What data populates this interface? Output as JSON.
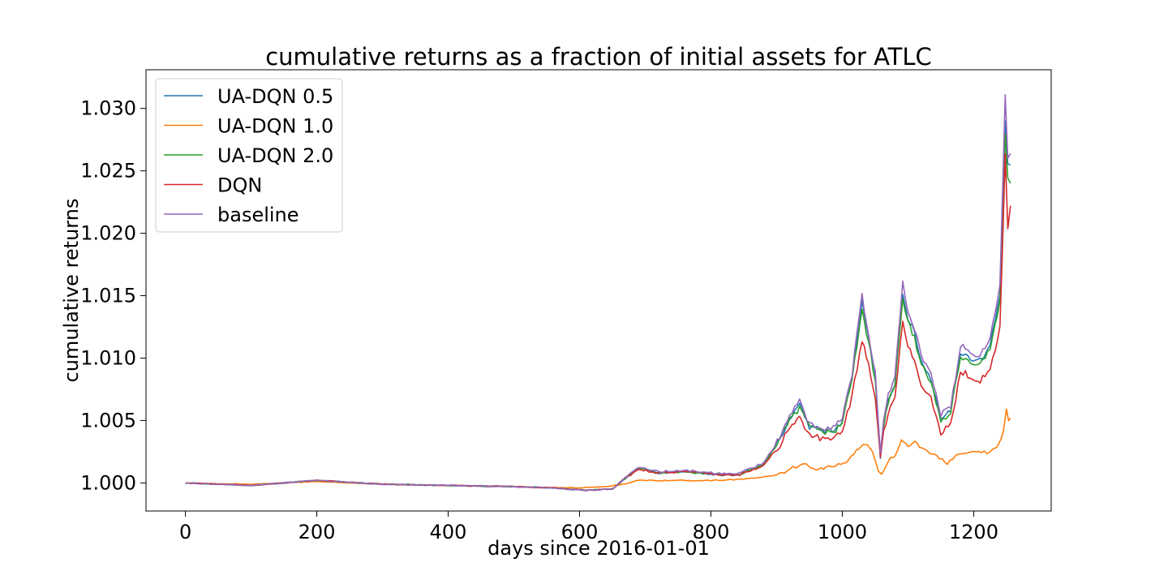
{
  "chart_data": {
    "type": "line",
    "title": "cumulative returns as a fraction of initial assets for ATLC",
    "xlabel": "days since 2016-01-01",
    "ylabel": "cumulative returns",
    "xlim": [
      -60,
      1318
    ],
    "ylim": [
      0.99775,
      1.0331
    ],
    "xticks": [
      0,
      200,
      400,
      600,
      800,
      1000,
      1200
    ],
    "xtick_labels": [
      "0",
      "200",
      "400",
      "600",
      "800",
      "1000",
      "1200"
    ],
    "yticks": [
      1.0,
      1.005,
      1.01,
      1.015,
      1.02,
      1.025,
      1.03
    ],
    "ytick_labels": [
      "1.000",
      "1.005",
      "1.010",
      "1.015",
      "1.020",
      "1.025",
      "1.030"
    ],
    "grid": false,
    "legend_position": "upper-left",
    "series": [
      {
        "name": "UA-DQN 0.5",
        "color": "#1f77b4",
        "points": [
          [
            0,
            1.0
          ],
          [
            100,
            0.9998
          ],
          [
            200,
            1.0002
          ],
          [
            300,
            0.9999
          ],
          [
            400,
            0.9998
          ],
          [
            500,
            0.9997
          ],
          [
            560,
            0.9996
          ],
          [
            610,
            0.9994
          ],
          [
            650,
            0.9995
          ],
          [
            665,
            1.0002
          ],
          [
            690,
            1.0012
          ],
          [
            720,
            1.0008
          ],
          [
            760,
            1.0009
          ],
          [
            800,
            1.0007
          ],
          [
            840,
            1.0006
          ],
          [
            880,
            1.0015
          ],
          [
            905,
            1.0035
          ],
          [
            920,
            1.0052
          ],
          [
            935,
            1.0062
          ],
          [
            950,
            1.0045
          ],
          [
            970,
            1.0042
          ],
          [
            990,
            1.0043
          ],
          [
            1000,
            1.005
          ],
          [
            1015,
            1.0085
          ],
          [
            1030,
            1.0145
          ],
          [
            1040,
            1.0115
          ],
          [
            1050,
            1.0085
          ],
          [
            1058,
            1.0022
          ],
          [
            1063,
            1.0048
          ],
          [
            1070,
            1.0068
          ],
          [
            1080,
            1.008
          ],
          [
            1092,
            1.0152
          ],
          [
            1100,
            1.0132
          ],
          [
            1110,
            1.012
          ],
          [
            1120,
            1.0098
          ],
          [
            1135,
            1.0083
          ],
          [
            1150,
            1.0052
          ],
          [
            1165,
            1.0058
          ],
          [
            1180,
            1.0105
          ],
          [
            1195,
            1.01
          ],
          [
            1210,
            1.0098
          ],
          [
            1225,
            1.011
          ],
          [
            1240,
            1.015
          ],
          [
            1248,
            1.029
          ],
          [
            1252,
            1.0255
          ],
          [
            1256,
            1.0255
          ]
        ]
      },
      {
        "name": "UA-DQN 1.0",
        "color": "#ff7f0e",
        "points": [
          [
            0,
            1.0
          ],
          [
            100,
            0.9999
          ],
          [
            200,
            1.0001
          ],
          [
            300,
            0.9999
          ],
          [
            400,
            0.9998
          ],
          [
            500,
            0.9997
          ],
          [
            600,
            0.9996
          ],
          [
            640,
            0.9997
          ],
          [
            665,
            0.9999
          ],
          [
            690,
            1.0002
          ],
          [
            750,
            1.0002
          ],
          [
            800,
            1.0002
          ],
          [
            850,
            1.0003
          ],
          [
            900,
            1.0006
          ],
          [
            925,
            1.0012
          ],
          [
            945,
            1.0015
          ],
          [
            960,
            1.0011
          ],
          [
            990,
            1.0014
          ],
          [
            1010,
            1.0018
          ],
          [
            1025,
            1.0028
          ],
          [
            1035,
            1.0032
          ],
          [
            1045,
            1.0025
          ],
          [
            1055,
            1.001
          ],
          [
            1060,
            1.0006
          ],
          [
            1070,
            1.0018
          ],
          [
            1080,
            1.0022
          ],
          [
            1090,
            1.0035
          ],
          [
            1100,
            1.003
          ],
          [
            1110,
            1.0033
          ],
          [
            1125,
            1.0026
          ],
          [
            1140,
            1.0022
          ],
          [
            1160,
            1.0016
          ],
          [
            1180,
            1.0024
          ],
          [
            1200,
            1.0026
          ],
          [
            1220,
            1.0024
          ],
          [
            1235,
            1.0028
          ],
          [
            1245,
            1.004
          ],
          [
            1250,
            1.0058
          ],
          [
            1253,
            1.005
          ],
          [
            1256,
            1.0052
          ]
        ]
      },
      {
        "name": "UA-DQN 2.0",
        "color": "#2ca02c",
        "points": [
          [
            0,
            1.0
          ],
          [
            100,
            0.9998
          ],
          [
            200,
            1.0002
          ],
          [
            300,
            0.9999
          ],
          [
            400,
            0.9998
          ],
          [
            500,
            0.9997
          ],
          [
            560,
            0.9996
          ],
          [
            610,
            0.9994
          ],
          [
            650,
            0.9995
          ],
          [
            665,
            1.0002
          ],
          [
            690,
            1.0012
          ],
          [
            720,
            1.0008
          ],
          [
            760,
            1.0009
          ],
          [
            800,
            1.0007
          ],
          [
            840,
            1.0006
          ],
          [
            880,
            1.0015
          ],
          [
            905,
            1.0034
          ],
          [
            920,
            1.005
          ],
          [
            935,
            1.006
          ],
          [
            950,
            1.0044
          ],
          [
            970,
            1.0041
          ],
          [
            990,
            1.0042
          ],
          [
            1000,
            1.0049
          ],
          [
            1015,
            1.0083
          ],
          [
            1030,
            1.014
          ],
          [
            1040,
            1.0112
          ],
          [
            1050,
            1.0083
          ],
          [
            1058,
            1.0022
          ],
          [
            1063,
            1.0046
          ],
          [
            1070,
            1.0066
          ],
          [
            1080,
            1.0078
          ],
          [
            1092,
            1.0148
          ],
          [
            1100,
            1.0128
          ],
          [
            1110,
            1.0116
          ],
          [
            1120,
            1.0095
          ],
          [
            1135,
            1.008
          ],
          [
            1150,
            1.005
          ],
          [
            1165,
            1.0056
          ],
          [
            1180,
            1.0102
          ],
          [
            1195,
            1.0097
          ],
          [
            1210,
            1.0095
          ],
          [
            1225,
            1.0106
          ],
          [
            1240,
            1.0145
          ],
          [
            1248,
            1.028
          ],
          [
            1252,
            1.0245
          ],
          [
            1256,
            1.024
          ]
        ]
      },
      {
        "name": "DQN",
        "color": "#d62728",
        "points": [
          [
            0,
            1.0
          ],
          [
            100,
            0.9998
          ],
          [
            200,
            1.0002
          ],
          [
            300,
            0.9999
          ],
          [
            400,
            0.9998
          ],
          [
            500,
            0.9997
          ],
          [
            560,
            0.9996
          ],
          [
            610,
            0.9994
          ],
          [
            650,
            0.9995
          ],
          [
            665,
            1.0002
          ],
          [
            690,
            1.0011
          ],
          [
            720,
            1.0008
          ],
          [
            760,
            1.0009
          ],
          [
            800,
            1.0007
          ],
          [
            840,
            1.0006
          ],
          [
            880,
            1.0014
          ],
          [
            905,
            1.003
          ],
          [
            920,
            1.0045
          ],
          [
            935,
            1.0052
          ],
          [
            950,
            1.0038
          ],
          [
            970,
            1.0035
          ],
          [
            990,
            1.0036
          ],
          [
            1000,
            1.0042
          ],
          [
            1015,
            1.007
          ],
          [
            1030,
            1.0115
          ],
          [
            1040,
            1.0095
          ],
          [
            1050,
            1.007
          ],
          [
            1058,
            1.002
          ],
          [
            1063,
            1.004
          ],
          [
            1070,
            1.0058
          ],
          [
            1080,
            1.0068
          ],
          [
            1092,
            1.013
          ],
          [
            1100,
            1.011
          ],
          [
            1110,
            1.0098
          ],
          [
            1120,
            1.008
          ],
          [
            1135,
            1.0068
          ],
          [
            1150,
            1.004
          ],
          [
            1165,
            1.0046
          ],
          [
            1180,
            1.009
          ],
          [
            1195,
            1.0085
          ],
          [
            1210,
            1.0082
          ],
          [
            1225,
            1.009
          ],
          [
            1240,
            1.0125
          ],
          [
            1248,
            1.0262
          ],
          [
            1252,
            1.0205
          ],
          [
            1256,
            1.0222
          ]
        ]
      },
      {
        "name": "baseline",
        "color": "#9467bd",
        "points": [
          [
            0,
            1.0
          ],
          [
            100,
            0.9998
          ],
          [
            200,
            1.0002
          ],
          [
            300,
            0.9999
          ],
          [
            400,
            0.9998
          ],
          [
            500,
            0.9997
          ],
          [
            560,
            0.9996
          ],
          [
            610,
            0.9994
          ],
          [
            650,
            0.9995
          ],
          [
            665,
            1.0002
          ],
          [
            690,
            1.0013
          ],
          [
            720,
            1.0009
          ],
          [
            760,
            1.001
          ],
          [
            800,
            1.0008
          ],
          [
            840,
            1.0007
          ],
          [
            880,
            1.0016
          ],
          [
            905,
            1.0036
          ],
          [
            920,
            1.0054
          ],
          [
            935,
            1.0066
          ],
          [
            950,
            1.0047
          ],
          [
            970,
            1.0044
          ],
          [
            990,
            1.0045
          ],
          [
            1000,
            1.0052
          ],
          [
            1015,
            1.0088
          ],
          [
            1030,
            1.015
          ],
          [
            1040,
            1.0118
          ],
          [
            1050,
            1.0088
          ],
          [
            1058,
            1.0024
          ],
          [
            1063,
            1.005
          ],
          [
            1070,
            1.007
          ],
          [
            1080,
            1.0084
          ],
          [
            1092,
            1.0162
          ],
          [
            1100,
            1.0136
          ],
          [
            1110,
            1.0124
          ],
          [
            1120,
            1.0102
          ],
          [
            1135,
            1.0086
          ],
          [
            1150,
            1.0055
          ],
          [
            1165,
            1.006
          ],
          [
            1180,
            1.011
          ],
          [
            1195,
            1.0105
          ],
          [
            1210,
            1.0102
          ],
          [
            1225,
            1.0115
          ],
          [
            1240,
            1.016
          ],
          [
            1248,
            1.0312
          ],
          [
            1252,
            1.0262
          ],
          [
            1256,
            1.0264
          ]
        ]
      }
    ]
  }
}
